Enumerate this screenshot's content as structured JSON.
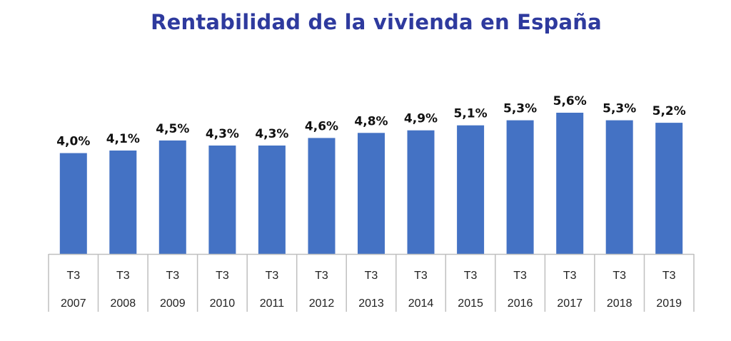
{
  "chart_data": {
    "type": "bar",
    "title": "Rentabilidad de la vivienda en España",
    "categories": [
      {
        "quarter": "T3",
        "year": "2007"
      },
      {
        "quarter": "T3",
        "year": "2008"
      },
      {
        "quarter": "T3",
        "year": "2009"
      },
      {
        "quarter": "T3",
        "year": "2010"
      },
      {
        "quarter": "T3",
        "year": "2011"
      },
      {
        "quarter": "T3",
        "year": "2012"
      },
      {
        "quarter": "T3",
        "year": "2013"
      },
      {
        "quarter": "T3",
        "year": "2014"
      },
      {
        "quarter": "T3",
        "year": "2015"
      },
      {
        "quarter": "T3",
        "year": "2016"
      },
      {
        "quarter": "T3",
        "year": "2017"
      },
      {
        "quarter": "T3",
        "year": "2018"
      },
      {
        "quarter": "T3",
        "year": "2019"
      }
    ],
    "values": [
      4.0,
      4.1,
      4.5,
      4.3,
      4.3,
      4.6,
      4.8,
      4.9,
      5.1,
      5.3,
      5.6,
      5.3,
      5.2
    ],
    "value_labels": [
      "4,0%",
      "4,1%",
      "4,5%",
      "4,3%",
      "4,3%",
      "4,6%",
      "4,8%",
      "4,9%",
      "5,1%",
      "5,3%",
      "5,6%",
      "5,3%",
      "5,2%"
    ],
    "xlabel": "",
    "ylabel": "",
    "ylim": [
      0,
      5.6
    ],
    "grid": false,
    "legend": "none",
    "bar_color": "#4472c4",
    "axis_color": "#bfbfbf"
  }
}
